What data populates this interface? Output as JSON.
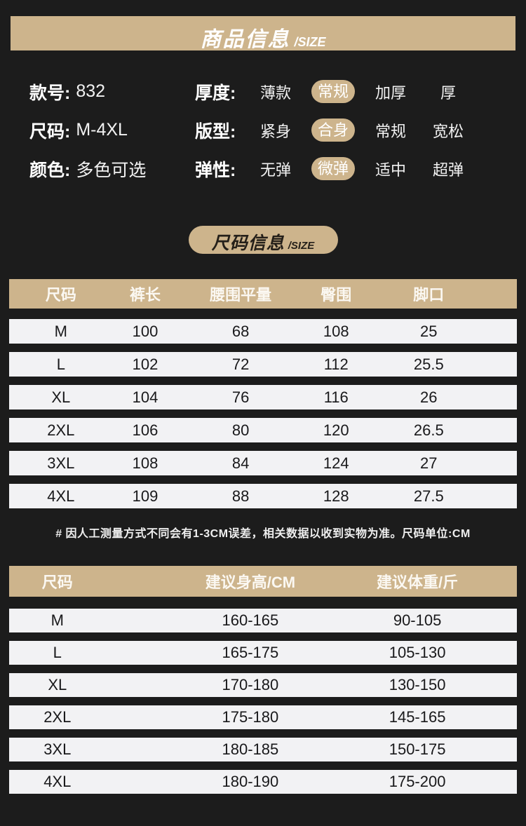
{
  "banner": {
    "title": "商品信息",
    "suffix": "/SIZE"
  },
  "attributes": {
    "left": [
      {
        "label": "款号:",
        "value": "832"
      },
      {
        "label": "尺码:",
        "value": "M-4XL"
      },
      {
        "label": "颜色:",
        "value": "多色可选"
      }
    ],
    "right": [
      {
        "label": "厚度:",
        "options": [
          "薄款",
          "常规",
          "加厚",
          "厚"
        ],
        "selected_index": 1
      },
      {
        "label": "版型:",
        "options": [
          "紧身",
          "合身",
          "常规",
          "宽松"
        ],
        "selected_index": 1
      },
      {
        "label": "弹性:",
        "options": [
          "无弹",
          "微弹",
          "适中",
          "超弹"
        ],
        "selected_index": 1
      }
    ]
  },
  "size_badge": {
    "title": "尺码信息",
    "suffix": "/SIZE"
  },
  "size_table": {
    "headers": [
      "尺码",
      "裤长",
      "腰围平量",
      "臀围",
      "脚口"
    ],
    "rows": [
      [
        "M",
        "100",
        "68",
        "108",
        "25"
      ],
      [
        "L",
        "102",
        "72",
        "112",
        "25.5"
      ],
      [
        "XL",
        "104",
        "76",
        "116",
        "26"
      ],
      [
        "2XL",
        "106",
        "80",
        "120",
        "26.5"
      ],
      [
        "3XL",
        "108",
        "84",
        "124",
        "27"
      ],
      [
        "4XL",
        "109",
        "88",
        "128",
        "27.5"
      ]
    ]
  },
  "note": "# 因人工测量方式不同会有1-3CM误差，相关数据以收到实物为准。尺码单位:CM",
  "fit_table": {
    "headers": [
      "尺码",
      "建议身高/CM",
      "建议体重/斤"
    ],
    "rows": [
      [
        "M",
        "160-165",
        "90-105"
      ],
      [
        "L",
        "165-175",
        "105-130"
      ],
      [
        "XL",
        "170-180",
        "130-150"
      ],
      [
        "2XL",
        "175-180",
        "145-165"
      ],
      [
        "3XL",
        "180-185",
        "150-175"
      ],
      [
        "4XL",
        "180-190",
        "175-200"
      ]
    ]
  },
  "colors": {
    "background": "#1c1c1c",
    "accent_tan": "#cdb48c",
    "row_bg": "#f2f2f4"
  }
}
